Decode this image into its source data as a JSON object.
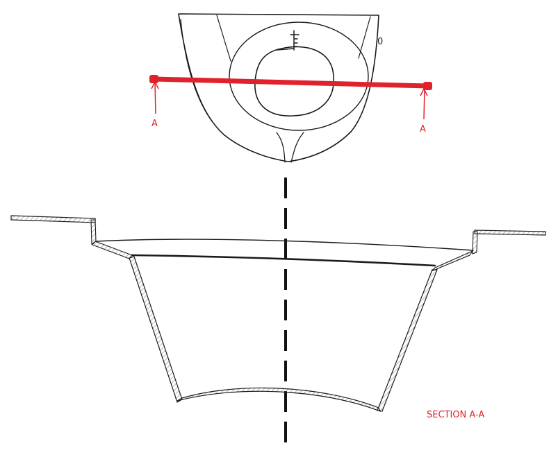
{
  "labels": {
    "cut_left": "A",
    "cut_right": "A",
    "plan_mark": "0",
    "section_title": "SECTION A-A"
  },
  "colors": {
    "ink": "#1b1b1b",
    "section_red": "#e0222c",
    "hatch": "#8a8a8a",
    "background": "#ffffff"
  }
}
